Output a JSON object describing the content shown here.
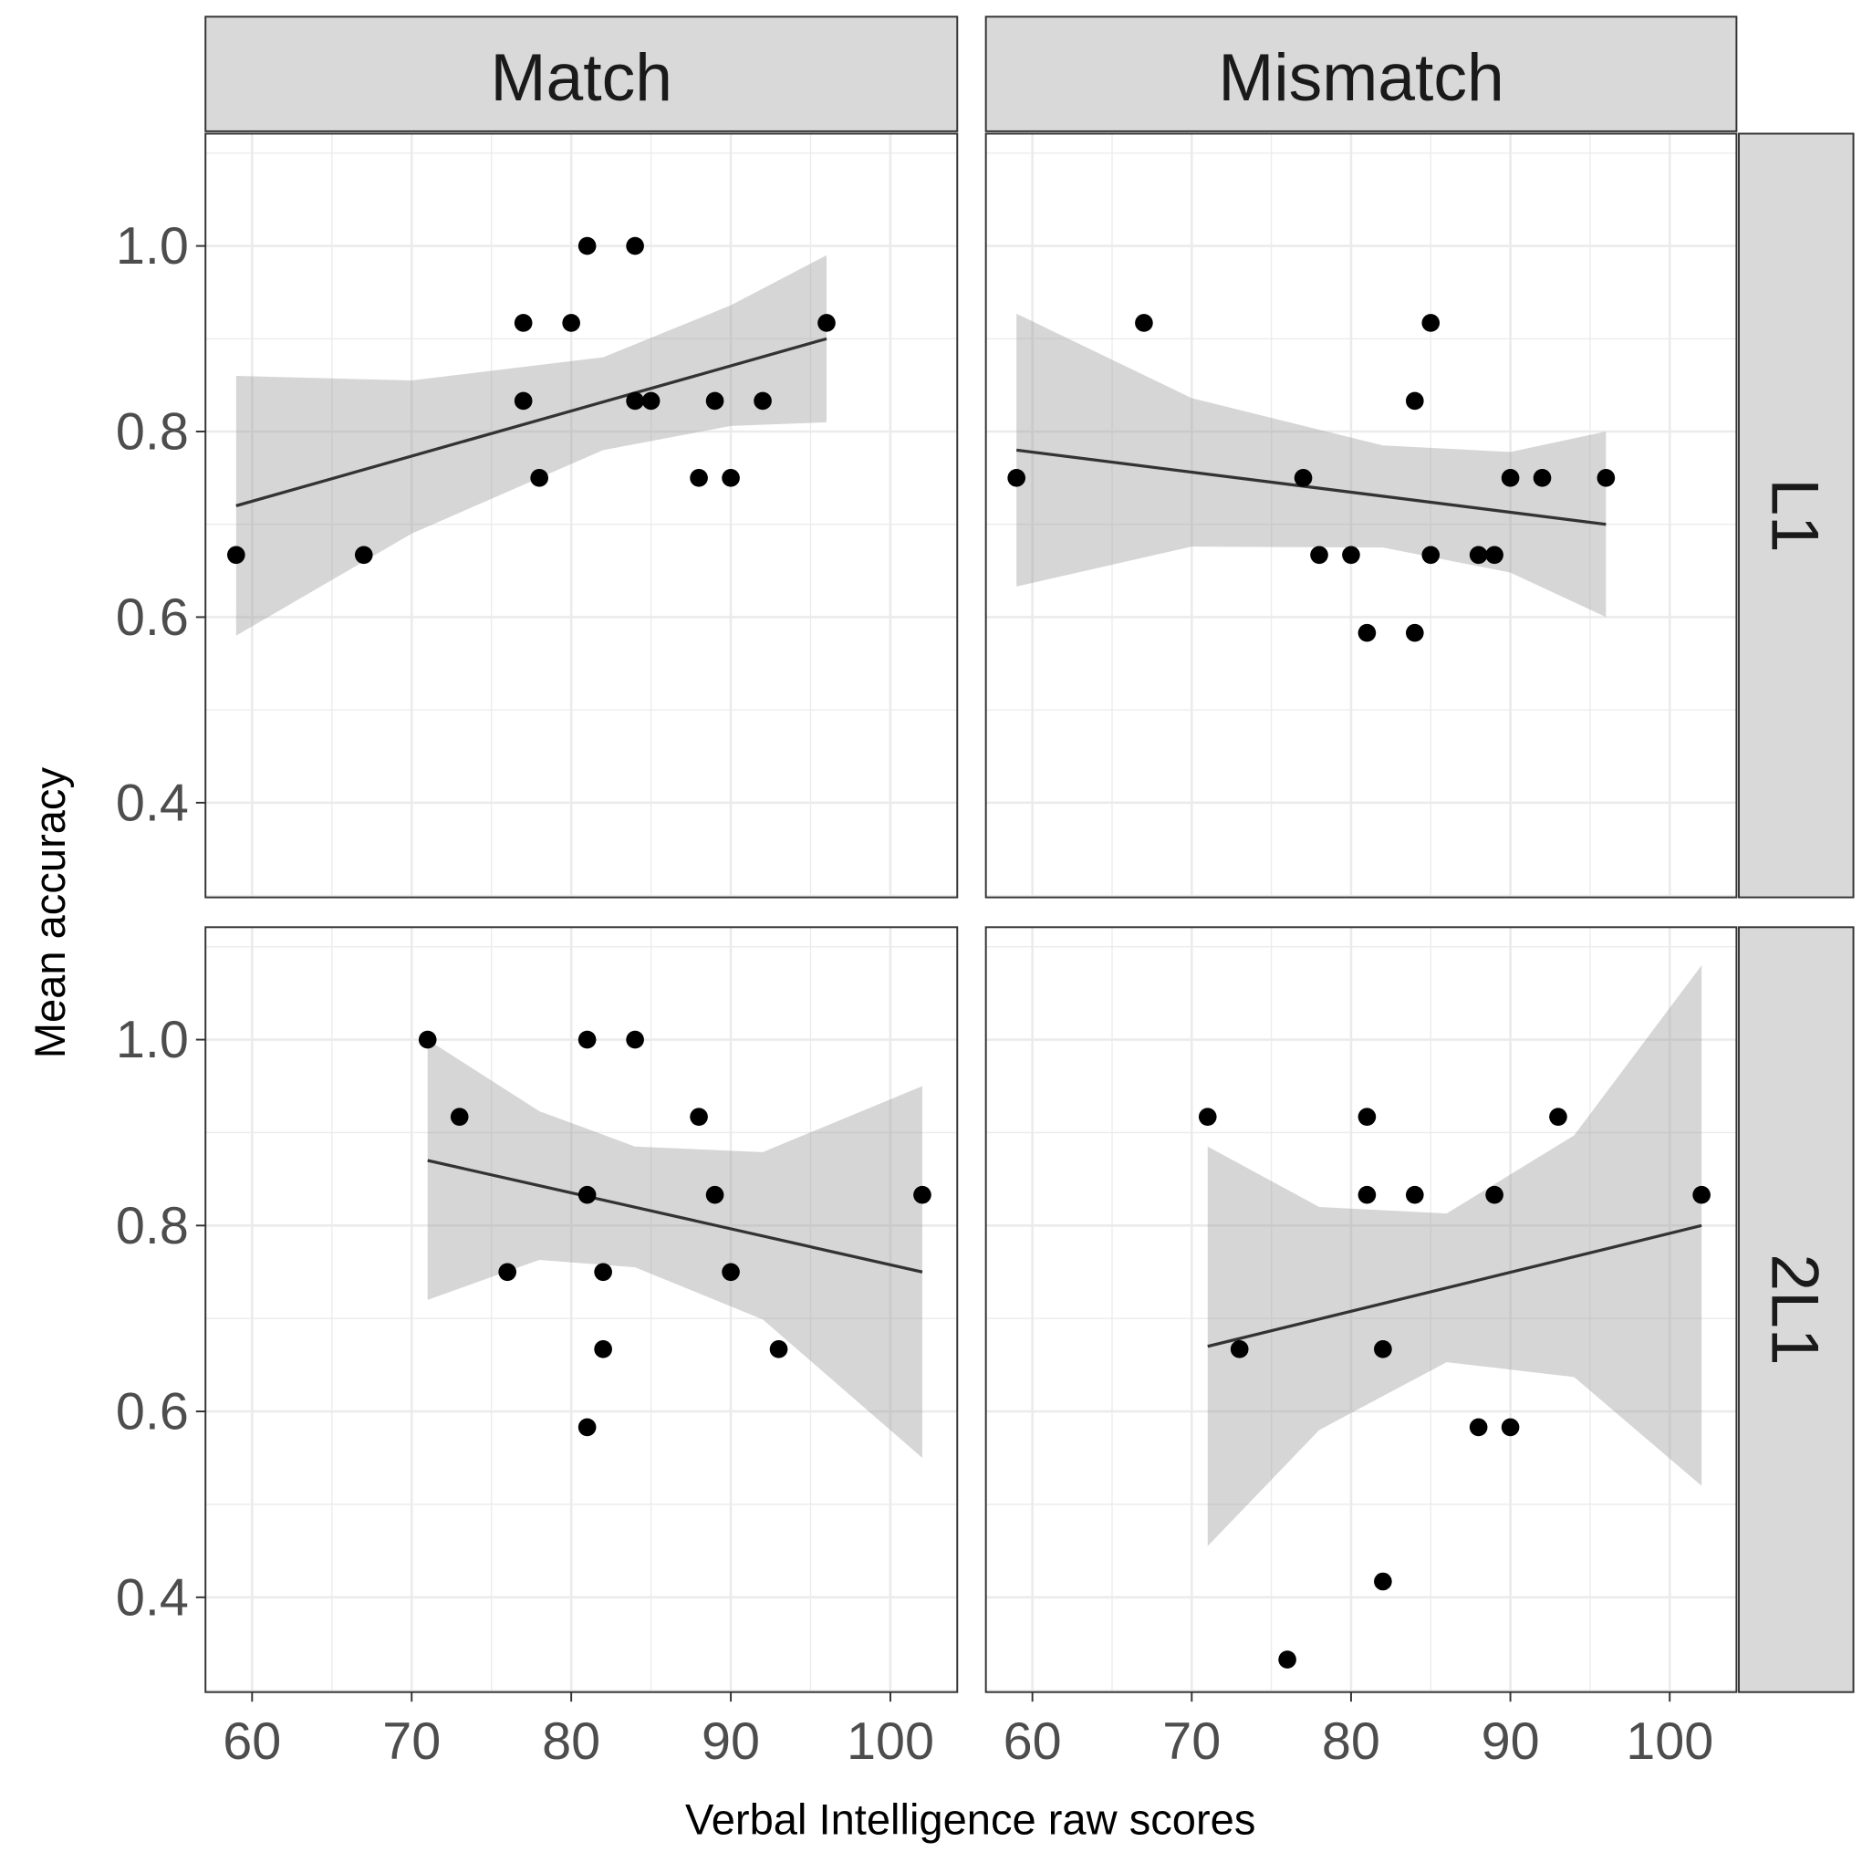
{
  "chart_data": {
    "type": "scatter",
    "xlabel": "Verbal Intelligence raw scores",
    "ylabel": "Mean accuracy",
    "xlim": [
      57.08,
      104.19
    ],
    "ylim": [
      0.298,
      1.121
    ],
    "xticks": [
      60,
      70,
      80,
      90,
      100
    ],
    "xtick_labels": [
      "60",
      "70",
      "80",
      "90",
      "100"
    ],
    "yticks": [
      0.4,
      0.6,
      0.8,
      1.0
    ],
    "ytick_labels": [
      "0.4",
      "0.6",
      "0.8",
      "1.0"
    ],
    "grid": true,
    "col_facets": [
      "Match",
      "Mismatch"
    ],
    "row_facets": [
      "L1",
      "2L1"
    ],
    "panels": [
      {
        "col": "Match",
        "row": "L1",
        "points": [
          [
            59,
            0.667
          ],
          [
            67,
            0.667
          ],
          [
            77,
            0.917
          ],
          [
            77,
            0.833
          ],
          [
            78,
            0.75
          ],
          [
            80,
            0.917
          ],
          [
            81,
            1.0
          ],
          [
            84,
            1.0
          ],
          [
            84,
            0.833
          ],
          [
            85,
            0.833
          ],
          [
            88,
            0.75
          ],
          [
            89,
            0.833
          ],
          [
            90,
            0.75
          ],
          [
            92,
            0.833
          ],
          [
            96,
            0.917
          ]
        ],
        "fit": [
          [
            59,
            0.72
          ],
          [
            96,
            0.9
          ]
        ],
        "ci": [
          [
            59,
            0.58,
            0.86
          ],
          [
            70,
            0.69,
            0.855
          ],
          [
            82,
            0.78,
            0.88
          ],
          [
            90,
            0.806,
            0.936
          ],
          [
            96,
            0.81,
            0.99
          ]
        ]
      },
      {
        "col": "Mismatch",
        "row": "L1",
        "points": [
          [
            59,
            0.75
          ],
          [
            67,
            0.917
          ],
          [
            77,
            0.75
          ],
          [
            78,
            0.667
          ],
          [
            80,
            0.667
          ],
          [
            81,
            0.583
          ],
          [
            84,
            0.833
          ],
          [
            84,
            0.583
          ],
          [
            85,
            0.917
          ],
          [
            85,
            0.667
          ],
          [
            88,
            0.667
          ],
          [
            89,
            0.667
          ],
          [
            90,
            0.75
          ],
          [
            92,
            0.75
          ],
          [
            96,
            0.75
          ]
        ],
        "fit": [
          [
            59,
            0.78
          ],
          [
            96,
            0.7
          ]
        ],
        "ci": [
          [
            59,
            0.633,
            0.927
          ],
          [
            70,
            0.676,
            0.836
          ],
          [
            82,
            0.675,
            0.785
          ],
          [
            90,
            0.648,
            0.778
          ],
          [
            96,
            0.6,
            0.8
          ]
        ]
      },
      {
        "col": "Match",
        "row": "2L1",
        "points": [
          [
            71,
            1.0
          ],
          [
            73,
            0.917
          ],
          [
            76,
            0.75
          ],
          [
            81,
            1.0
          ],
          [
            81,
            0.833
          ],
          [
            81,
            0.583
          ],
          [
            82,
            0.75
          ],
          [
            82,
            0.667
          ],
          [
            84,
            1.0
          ],
          [
            88,
            0.917
          ],
          [
            89,
            0.833
          ],
          [
            90,
            0.75
          ],
          [
            93,
            0.667
          ],
          [
            102,
            0.833
          ]
        ],
        "fit": [
          [
            71,
            0.87
          ],
          [
            102,
            0.75
          ]
        ],
        "ci": [
          [
            71,
            0.72,
            1.0
          ],
          [
            78,
            0.763,
            0.923
          ],
          [
            84,
            0.755,
            0.885
          ],
          [
            92,
            0.699,
            0.879
          ],
          [
            102,
            0.55,
            0.95
          ]
        ]
      },
      {
        "col": "Mismatch",
        "row": "2L1",
        "points": [
          [
            71,
            0.917
          ],
          [
            73,
            0.667
          ],
          [
            76,
            0.333
          ],
          [
            81,
            0.917
          ],
          [
            81,
            0.833
          ],
          [
            82,
            0.667
          ],
          [
            82,
            0.417
          ],
          [
            84,
            0.833
          ],
          [
            88,
            0.583
          ],
          [
            89,
            0.833
          ],
          [
            90,
            0.583
          ],
          [
            93,
            0.917
          ],
          [
            102,
            0.833
          ]
        ],
        "fit": [
          [
            71,
            0.67
          ],
          [
            102,
            0.8
          ]
        ],
        "ci": [
          [
            71,
            0.455,
            0.885
          ],
          [
            78,
            0.58,
            0.82
          ],
          [
            86,
            0.653,
            0.813
          ],
          [
            94,
            0.637,
            0.897
          ],
          [
            102,
            0.52,
            1.08
          ]
        ]
      }
    ]
  }
}
